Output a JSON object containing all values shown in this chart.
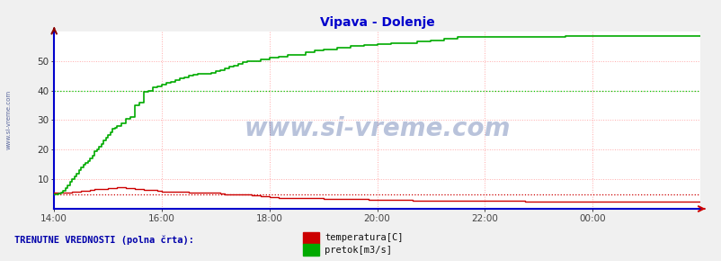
{
  "title": "Vipava - Dolenje",
  "title_color": "#0000cc",
  "bg_color": "#f0f0f0",
  "plot_bg_color": "#ffffff",
  "grid_color": "#ffaaaa",
  "xlabel_color": "#444444",
  "ylabel_color": "#333333",
  "yticks": [
    10,
    20,
    30,
    40,
    50
  ],
  "ylim": [
    0,
    60
  ],
  "xlim": [
    0,
    288
  ],
  "xtick_labels": [
    "14:00",
    "16:00",
    "18:00",
    "20:00",
    "22:00",
    "00:00"
  ],
  "xtick_positions": [
    0,
    48,
    96,
    144,
    192,
    240
  ],
  "watermark": "www.si-vreme.com",
  "watermark_color": "#1a3a8a",
  "watermark_alpha": 0.3,
  "sidebar_text": "www.si-vreme.com",
  "legend_title": "TRENUTNE VREDNOSTI (polna črta):",
  "legend_title_color": "#0000aa",
  "series": [
    {
      "label": "temperatura[C]",
      "color": "#cc0000",
      "ref_color": "#cc0000",
      "linewidth": 1.0
    },
    {
      "label": "pretok[m3/s]",
      "color": "#00aa00",
      "ref_color": "#00cc00",
      "linewidth": 1.2
    }
  ],
  "dotted_temp_y": 5.0,
  "dotted_pretok_y": 40.0,
  "axis_bottom_color": "#0000cc",
  "axis_left_color": "#0000cc",
  "arrow_color": "#cc0000",
  "temperatura_x": [
    0,
    2,
    4,
    6,
    8,
    10,
    12,
    14,
    16,
    18,
    20,
    22,
    24,
    26,
    28,
    30,
    32,
    34,
    36,
    38,
    40,
    42,
    44,
    46,
    48,
    50,
    52,
    54,
    56,
    58,
    60,
    62,
    64,
    66,
    68,
    70,
    72,
    74,
    76,
    78,
    80,
    84,
    88,
    92,
    96,
    100,
    110,
    120,
    130,
    140,
    150,
    160,
    170,
    180,
    190,
    200,
    210,
    220,
    230,
    240,
    250,
    260,
    270,
    280,
    288
  ],
  "temperatura_y": [
    5.5,
    5.5,
    5.5,
    5.5,
    5.8,
    5.8,
    6.0,
    6.2,
    6.5,
    6.7,
    6.8,
    6.8,
    7.0,
    7.0,
    7.2,
    7.2,
    7.0,
    7.0,
    6.8,
    6.8,
    6.5,
    6.5,
    6.3,
    6.0,
    5.8,
    5.8,
    5.8,
    5.8,
    5.8,
    5.8,
    5.5,
    5.5,
    5.5,
    5.5,
    5.5,
    5.5,
    5.5,
    5.2,
    5.0,
    5.0,
    4.8,
    4.8,
    4.5,
    4.3,
    4.0,
    3.8,
    3.5,
    3.3,
    3.2,
    3.0,
    3.0,
    2.8,
    2.8,
    2.7,
    2.7,
    2.6,
    2.5,
    2.5,
    2.5,
    2.5,
    2.5,
    2.5,
    2.5,
    2.5,
    2.5
  ],
  "pretok_x": [
    0,
    1,
    2,
    3,
    4,
    5,
    6,
    7,
    8,
    9,
    10,
    11,
    12,
    13,
    14,
    15,
    16,
    17,
    18,
    19,
    20,
    21,
    22,
    23,
    24,
    25,
    26,
    27,
    28,
    30,
    32,
    34,
    36,
    38,
    40,
    42,
    44,
    46,
    48,
    50,
    52,
    54,
    56,
    58,
    60,
    62,
    64,
    66,
    68,
    70,
    72,
    74,
    76,
    78,
    80,
    82,
    84,
    86,
    88,
    90,
    92,
    96,
    100,
    104,
    108,
    112,
    116,
    120,
    126,
    132,
    138,
    144,
    150,
    156,
    162,
    168,
    174,
    180,
    186,
    192,
    198,
    204,
    210,
    216,
    222,
    228,
    234,
    240,
    246,
    252,
    258,
    264,
    270,
    276,
    282,
    288
  ],
  "pretok_y": [
    5.0,
    5.0,
    5.2,
    5.5,
    6.0,
    7.0,
    8.0,
    9.0,
    10.0,
    11.0,
    12.0,
    13.0,
    14.0,
    15.0,
    15.5,
    16.0,
    17.0,
    18.0,
    19.5,
    20.0,
    21.0,
    22.0,
    23.0,
    24.0,
    25.0,
    26.0,
    27.0,
    27.5,
    28.0,
    29.0,
    30.5,
    31.0,
    35.0,
    36.0,
    39.5,
    40.0,
    41.0,
    41.5,
    42.0,
    42.5,
    43.0,
    43.5,
    44.0,
    44.5,
    45.0,
    45.3,
    45.5,
    45.5,
    45.5,
    46.0,
    46.5,
    47.0,
    47.5,
    48.0,
    48.5,
    49.0,
    49.5,
    50.0,
    50.0,
    50.0,
    50.5,
    51.0,
    51.5,
    52.0,
    52.0,
    53.0,
    53.5,
    54.0,
    54.5,
    55.0,
    55.5,
    55.8,
    56.0,
    56.0,
    56.5,
    57.0,
    57.5,
    58.0,
    58.0,
    58.0,
    58.0,
    58.0,
    58.0,
    58.0,
    58.2,
    58.5,
    58.5,
    58.5,
    58.5,
    58.5,
    58.5,
    58.5,
    58.5,
    58.5,
    58.5,
    58.5
  ]
}
